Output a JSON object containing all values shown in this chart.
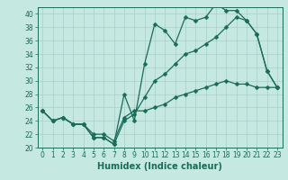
{
  "title": "",
  "xlabel": "Humidex (Indice chaleur)",
  "bg_color": "#c5e8e0",
  "line_color": "#1a6b5a",
  "grid_color": "#a8cfc8",
  "xlim": [
    -0.5,
    23.5
  ],
  "ylim": [
    20,
    41
  ],
  "yticks": [
    20,
    22,
    24,
    26,
    28,
    30,
    32,
    34,
    36,
    38,
    40
  ],
  "xticks": [
    0,
    1,
    2,
    3,
    4,
    5,
    6,
    7,
    8,
    9,
    10,
    11,
    12,
    13,
    14,
    15,
    16,
    17,
    18,
    19,
    20,
    21,
    22,
    23
  ],
  "line1_x": [
    0,
    1,
    2,
    3,
    4,
    5,
    6,
    7,
    8,
    9,
    10,
    11,
    12,
    13,
    14,
    15,
    16,
    17,
    18,
    19,
    20,
    21,
    22,
    23
  ],
  "line1_y": [
    25.5,
    24.0,
    24.5,
    23.5,
    23.5,
    21.5,
    21.5,
    20.5,
    28.0,
    24.0,
    32.5,
    38.5,
    37.5,
    35.5,
    39.5,
    39.0,
    39.5,
    41.5,
    40.5,
    40.5,
    39.0,
    37.0,
    31.5,
    29.0
  ],
  "line2_x": [
    0,
    1,
    2,
    3,
    4,
    5,
    6,
    7,
    8,
    9,
    10,
    11,
    12,
    13,
    14,
    15,
    16,
    17,
    18,
    19,
    20,
    21,
    22,
    23
  ],
  "line2_y": [
    25.5,
    24.0,
    24.5,
    23.5,
    23.5,
    21.5,
    21.5,
    20.5,
    24.0,
    25.0,
    27.5,
    30.0,
    31.0,
    32.5,
    34.0,
    34.5,
    35.5,
    36.5,
    38.0,
    39.5,
    39.0,
    37.0,
    31.5,
    29.0
  ],
  "line3_x": [
    0,
    1,
    2,
    3,
    4,
    5,
    6,
    7,
    8,
    9,
    10,
    11,
    12,
    13,
    14,
    15,
    16,
    17,
    18,
    19,
    20,
    21,
    22,
    23
  ],
  "line3_y": [
    25.5,
    24.0,
    24.5,
    23.5,
    23.5,
    22.0,
    22.0,
    21.0,
    24.5,
    25.5,
    25.5,
    26.0,
    26.5,
    27.5,
    28.0,
    28.5,
    29.0,
    29.5,
    30.0,
    29.5,
    29.5,
    29.0,
    29.0,
    29.0
  ],
  "tick_fontsize": 5.5,
  "xlabel_fontsize": 7.0,
  "marker_size": 2.5,
  "line_width": 0.9
}
